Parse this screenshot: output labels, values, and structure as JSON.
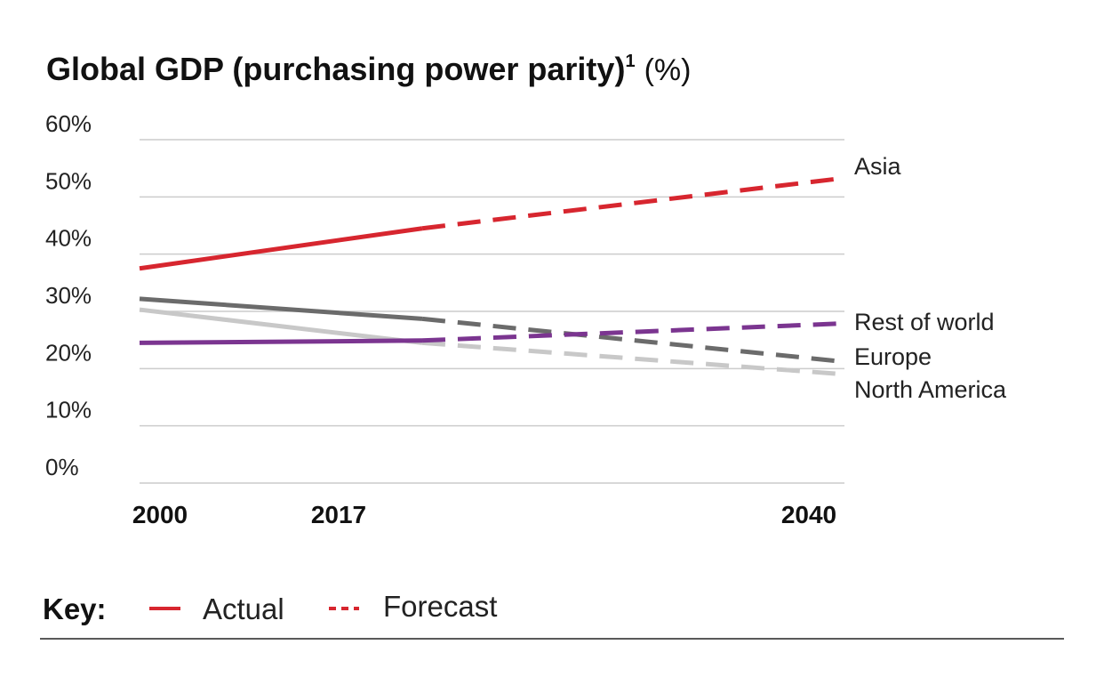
{
  "chart_data": {
    "type": "line",
    "title": "Global GDP (purchasing power parity)",
    "title_footnote": "1",
    "title_unit": "(%)",
    "xlabel": "",
    "ylabel": "",
    "ylim": [
      0,
      60
    ],
    "y_ticks": [
      {
        "value": 0,
        "label": "0%"
      },
      {
        "value": 10,
        "label": "10%"
      },
      {
        "value": 20,
        "label": "20%"
      },
      {
        "value": 30,
        "label": "30%"
      },
      {
        "value": 40,
        "label": "40%"
      },
      {
        "value": 50,
        "label": "50%"
      },
      {
        "value": 60,
        "label": "60%"
      }
    ],
    "x_range": [
      2000,
      2040
    ],
    "x_ticks": [
      {
        "value": 2000,
        "label": "2000"
      },
      {
        "value": 2017,
        "label": "2017"
      },
      {
        "value": 2040,
        "label": "2040"
      }
    ],
    "grid": true,
    "forecast_start": 2017,
    "series": [
      {
        "name": "Asia",
        "color": "#d7262f",
        "points": [
          {
            "x": 2000,
            "y": 37.5
          },
          {
            "x": 2017,
            "y": 44.5
          },
          {
            "x": 2040,
            "y": 53.3
          }
        ]
      },
      {
        "name": "Europe",
        "color": "#6b6b6b",
        "points": [
          {
            "x": 2000,
            "y": 32.2
          },
          {
            "x": 2017,
            "y": 28.7
          },
          {
            "x": 2040,
            "y": 21.2
          }
        ]
      },
      {
        "name": "North America",
        "color": "#c8c8c8",
        "points": [
          {
            "x": 2000,
            "y": 30.3
          },
          {
            "x": 2017,
            "y": 24.5
          },
          {
            "x": 2040,
            "y": 19.0
          }
        ]
      },
      {
        "name": "Rest of world",
        "color": "#7b3590",
        "points": [
          {
            "x": 2000,
            "y": 24.5
          },
          {
            "x": 2017,
            "y": 24.9
          },
          {
            "x": 2040,
            "y": 27.9
          }
        ]
      }
    ],
    "series_labels": [
      {
        "name": "Asia"
      },
      {
        "name": "Rest of world"
      },
      {
        "name": "Europe"
      },
      {
        "name": "North America"
      }
    ]
  },
  "key": {
    "title": "Key:",
    "actual_label": "Actual",
    "forecast_label": "Forecast",
    "color": "#d7262f"
  }
}
